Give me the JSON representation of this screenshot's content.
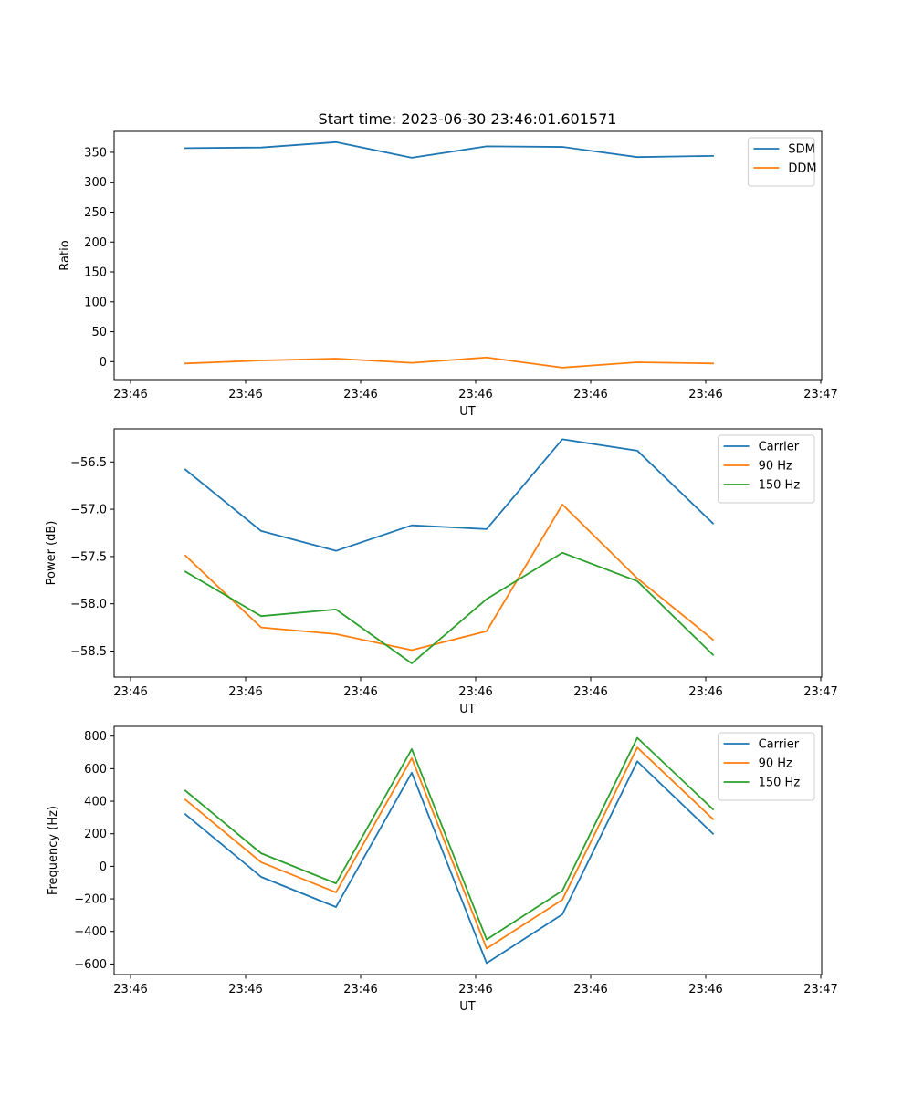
{
  "figure": {
    "title": "Start time: 2023-06-30 23:46:01.601571",
    "colors": {
      "blue": "#1f77b4",
      "orange": "#ff7f0e",
      "green": "#2ca02c"
    }
  },
  "chart_data": [
    {
      "type": "line",
      "title": "Start time: 2023-06-30 23:46:01.601571",
      "xlabel": "UT",
      "ylabel": "Ratio",
      "x_ticks": [
        "23:46",
        "23:46",
        "23:46",
        "23:46",
        "23:46",
        "23:46",
        "23:47"
      ],
      "y_ticks": [
        "0",
        "50",
        "100",
        "150",
        "200",
        "250",
        "300",
        "350"
      ],
      "ylim": [
        -30,
        385
      ],
      "legend_position": "upper right",
      "series": [
        {
          "name": "SDM",
          "color": "#1f77b4",
          "values": [
            357,
            358,
            367,
            341,
            360,
            359,
            342,
            344
          ]
        },
        {
          "name": "DDM",
          "color": "#ff7f0e",
          "values": [
            -3,
            2,
            5,
            -2,
            7,
            -10,
            -1,
            -3
          ]
        }
      ]
    },
    {
      "type": "line",
      "title": "",
      "xlabel": "UT",
      "ylabel": "Power (dB)",
      "x_ticks": [
        "23:46",
        "23:46",
        "23:46",
        "23:46",
        "23:46",
        "23:46",
        "23:47"
      ],
      "y_ticks": [
        "−58.5",
        "−58.0",
        "−57.5",
        "−57.0",
        "−56.5"
      ],
      "ylim": [
        -58.775,
        -56.15
      ],
      "legend_position": "upper right",
      "series": [
        {
          "name": "Carrier",
          "color": "#1f77b4",
          "values": [
            -56.58,
            -57.23,
            -57.44,
            -57.17,
            -57.21,
            -56.26,
            -56.38,
            -57.15
          ]
        },
        {
          "name": "90 Hz",
          "color": "#ff7f0e",
          "values": [
            -57.49,
            -58.25,
            -58.32,
            -58.49,
            -58.29,
            -56.95,
            -57.73,
            -58.38
          ]
        },
        {
          "name": "150 Hz",
          "color": "#2ca02c",
          "values": [
            -57.66,
            -58.13,
            -58.06,
            -58.63,
            -57.95,
            -57.46,
            -57.76,
            -58.54
          ]
        }
      ]
    },
    {
      "type": "line",
      "title": "",
      "xlabel": "UT",
      "ylabel": "Frequency (Hz)",
      "x_ticks": [
        "23:46",
        "23:46",
        "23:46",
        "23:46",
        "23:46",
        "23:46",
        "23:47"
      ],
      "y_ticks": [
        "−600",
        "−400",
        "−200",
        "0",
        "200",
        "400",
        "600",
        "800"
      ],
      "ylim": [
        -665,
        860
      ],
      "legend_position": "upper right",
      "series": [
        {
          "name": "Carrier",
          "color": "#1f77b4",
          "values": [
            320,
            -65,
            -250,
            575,
            -595,
            -295,
            645,
            200
          ]
        },
        {
          "name": "90 Hz",
          "color": "#ff7f0e",
          "values": [
            410,
            25,
            -160,
            665,
            -505,
            -205,
            730,
            290
          ]
        },
        {
          "name": "150 Hz",
          "color": "#2ca02c",
          "values": [
            465,
            80,
            -105,
            720,
            -450,
            -150,
            790,
            350
          ]
        }
      ]
    }
  ]
}
